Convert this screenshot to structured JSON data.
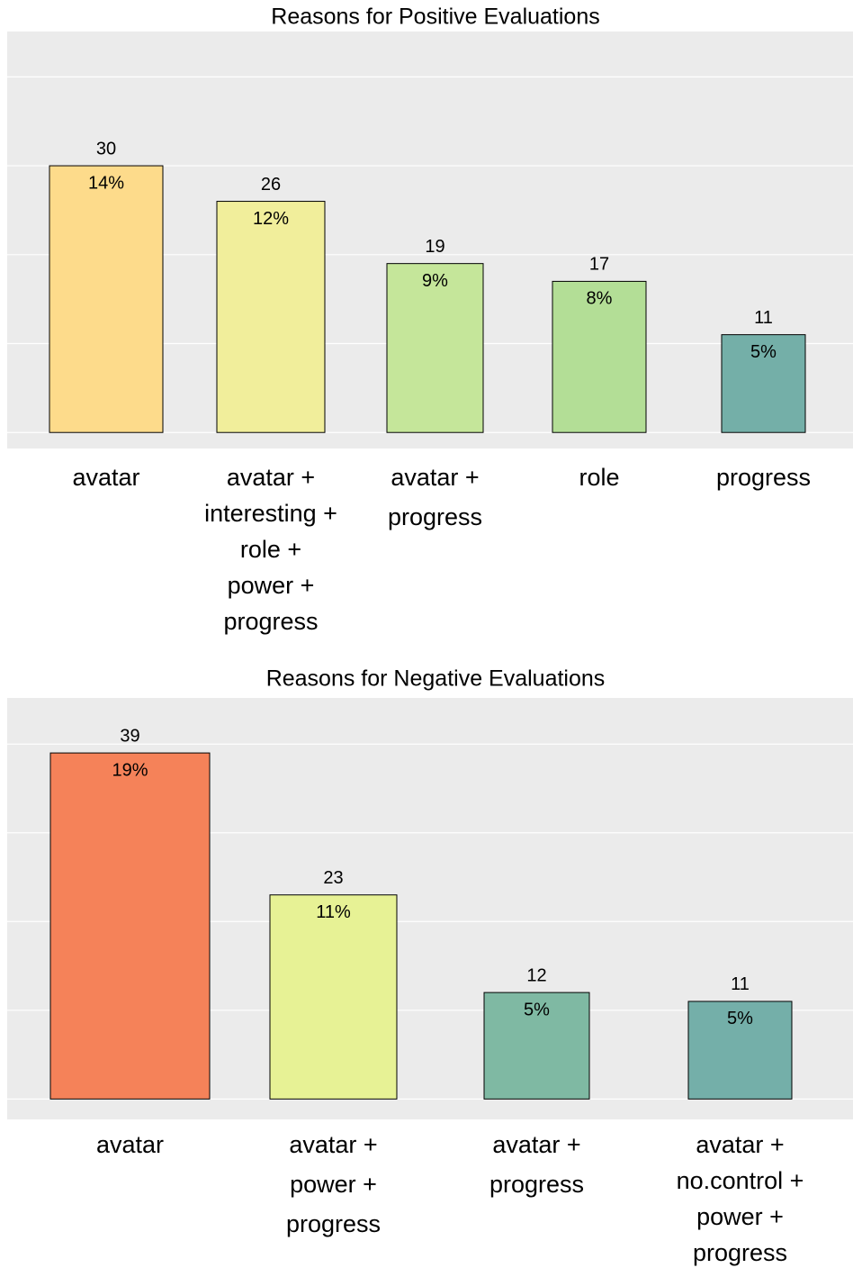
{
  "chart_data": [
    {
      "type": "bar",
      "title": "Reasons for Positive Evaluations",
      "categories": [
        [
          "avatar"
        ],
        [
          "avatar +",
          "interesting +",
          "role +",
          "power +",
          "progress"
        ],
        [
          "avatar +",
          "progress"
        ],
        [
          "role"
        ],
        [
          "progress"
        ]
      ],
      "values": [
        30,
        26,
        19,
        17,
        11
      ],
      "percent_labels": [
        "14%",
        "12%",
        "9%",
        "8%",
        "5%"
      ],
      "colors": [
        "#fddb8b",
        "#f1ee9b",
        "#c5e69a",
        "#b3de96",
        "#74afa8"
      ],
      "ylim": [
        -1.8,
        45.1
      ],
      "yticks": [
        0,
        10,
        20,
        30,
        40
      ],
      "grid": true
    },
    {
      "type": "bar",
      "title": "Reasons for Negative Evaluations",
      "categories": [
        [
          "avatar"
        ],
        [
          "avatar +",
          "power +",
          "progress"
        ],
        [
          "avatar +",
          "progress"
        ],
        [
          "avatar +",
          "no.control +",
          "power +",
          "progress"
        ]
      ],
      "values": [
        39,
        23,
        12,
        11
      ],
      "percent_labels": [
        "19%",
        "11%",
        "5%",
        "5%"
      ],
      "colors": [
        "#f58259",
        "#e7f295",
        "#7fb9a3",
        "#74afa9"
      ],
      "ylim": [
        -2.3,
        45.2
      ],
      "yticks": [
        0,
        10,
        20,
        30,
        40
      ],
      "grid": true
    }
  ]
}
